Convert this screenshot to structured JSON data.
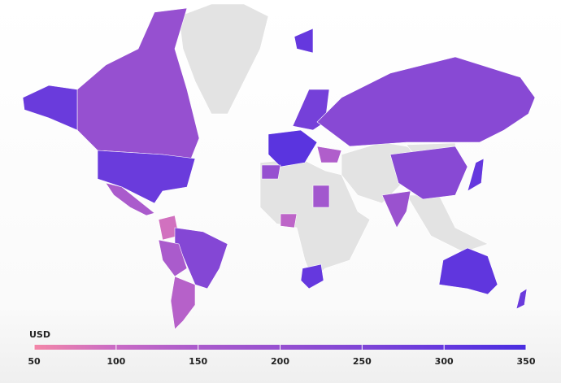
{
  "chart_data": {
    "type": "choropleth",
    "legend_title": "USD",
    "ticks": [
      50,
      100,
      150,
      200,
      250,
      300,
      350
    ],
    "colorscale": [
      "#f387a8",
      "#c96bc5",
      "#aa5bcc",
      "#9650d0",
      "#7f45d6",
      "#6538de",
      "#4a2ee0"
    ],
    "regions": [
      200,
      290,
      150,
      90,
      240,
      150,
      130,
      320,
      270,
      200,
      230,
      230,
      190,
      300,
      310,
      290,
      170,
      120,
      300,
      140,
      300
    ],
    "no_data_color": "#e3e3e3"
  }
}
